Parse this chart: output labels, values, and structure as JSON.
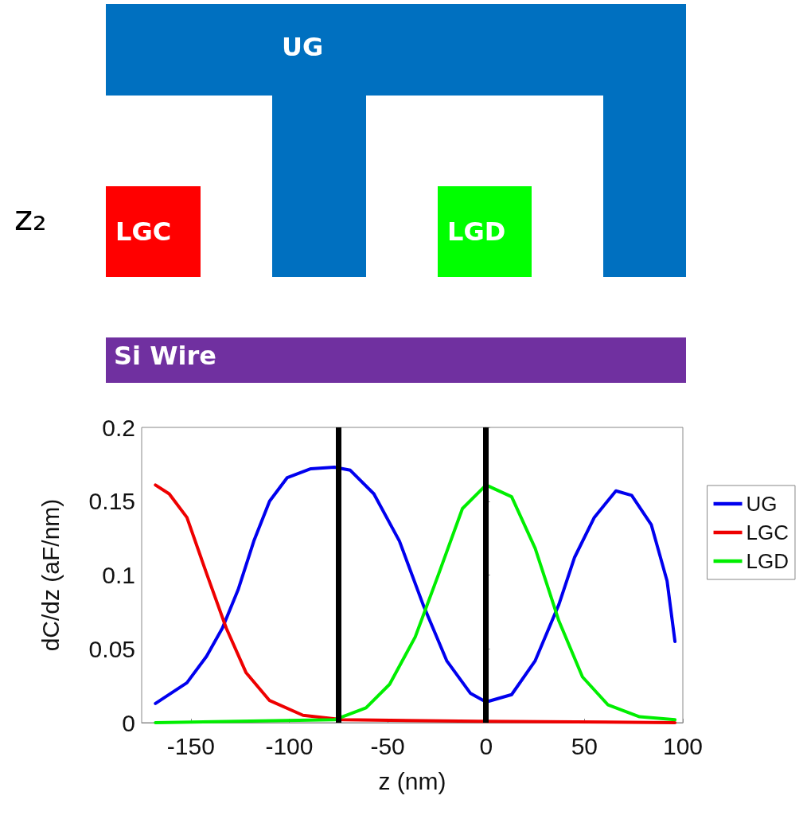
{
  "chart_data": {
    "type": "line",
    "xlabel": "z (nm)",
    "ylabel": "dC/dz (aF/nm)",
    "xlim": [
      -175,
      100
    ],
    "xticks": [
      -150,
      -100,
      -50,
      0,
      50,
      100
    ],
    "ylim": [
      0,
      0.2
    ],
    "yticks": [
      0,
      0.05,
      0.1,
      0.15,
      0.2
    ],
    "grid": false,
    "legend": "right",
    "marker": "none",
    "line_style": "solid",
    "series": [
      {
        "name": "UG",
        "color": "#0000ee",
        "x": [
          -168,
          -152,
          -142,
          -134,
          -126,
          -118,
          -110,
          -101,
          -89,
          -77,
          -69,
          -57,
          -44,
          -32,
          -20,
          -8,
          0,
          13,
          25,
          37,
          45,
          55,
          66,
          74,
          84,
          92,
          96
        ],
        "values": [
          0.013,
          0.027,
          0.045,
          0.064,
          0.09,
          0.123,
          0.15,
          0.166,
          0.172,
          0.173,
          0.171,
          0.155,
          0.123,
          0.08,
          0.042,
          0.02,
          0.014,
          0.019,
          0.042,
          0.08,
          0.112,
          0.139,
          0.157,
          0.154,
          0.134,
          0.096,
          0.055
        ]
      },
      {
        "name": "LGC",
        "color": "#ee0000",
        "x": [
          -168,
          -161,
          -152,
          -142,
          -132,
          -122,
          -110,
          -93,
          -73,
          -4,
          96
        ],
        "values": [
          0.161,
          0.155,
          0.139,
          0.101,
          0.064,
          0.034,
          0.015,
          0.005,
          0.002,
          0.001,
          0
        ]
      },
      {
        "name": "LGD",
        "color": "#00ee00",
        "x": [
          -168,
          -77,
          -61,
          -49,
          -36,
          -24,
          -12,
          0,
          13,
          25,
          37,
          49,
          62,
          78,
          96
        ],
        "values": [
          0,
          0.002,
          0.01,
          0.026,
          0.058,
          0.101,
          0.145,
          0.161,
          0.153,
          0.118,
          0.069,
          0.031,
          0.012,
          0.004,
          0.002
        ]
      }
    ],
    "ref_lines": [
      {
        "axis": "x",
        "value": -75,
        "color": "#000000"
      },
      {
        "axis": "x",
        "value": 0,
        "color": "#000000"
      }
    ],
    "annotations": [
      "UG",
      "LGC",
      "LGD",
      "Si Wire",
      "z₂"
    ]
  }
}
